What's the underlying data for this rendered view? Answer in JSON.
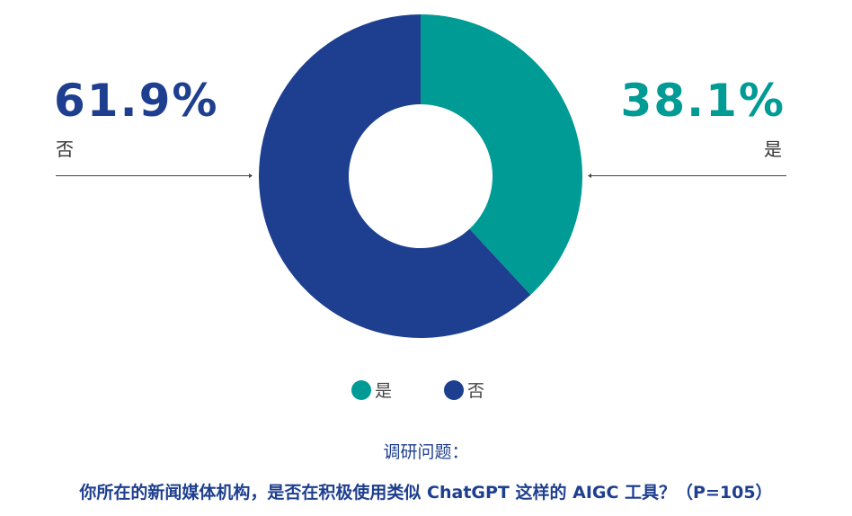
{
  "chart_data": {
    "type": "pie",
    "donut": true,
    "categories": [
      "是",
      "否"
    ],
    "values": [
      38.1,
      61.9
    ],
    "value_labels": [
      "38.1%",
      "61.9%"
    ],
    "colors": [
      "#009b95",
      "#1e3f8f"
    ],
    "legend": {
      "placement": "bottom",
      "entries": [
        "是",
        "否"
      ]
    },
    "title": "调研问题：",
    "subtitle": "你所在的新闻媒体机构，是否在积极使用类似 ChatGPT 这样的 AIGC 工具？（P=105）"
  }
}
